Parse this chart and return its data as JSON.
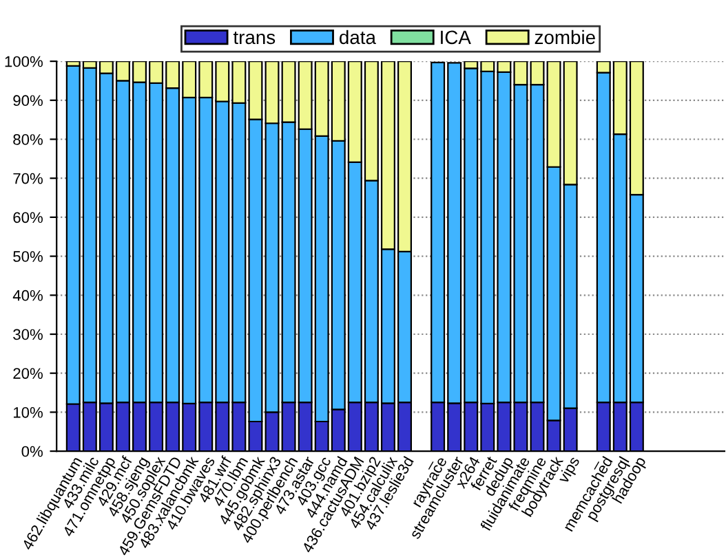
{
  "chart_data": {
    "type": "bar",
    "stacked": true,
    "categories": [
      "462.libquantum",
      "433.milc",
      "471.omnetpp",
      "429.mcf",
      "458.sjeng",
      "450.soplex",
      "459.GemsFDTD",
      "483.xalancbmk",
      "410.bwaves",
      "481.wrf",
      "470.lbm",
      "445.gobmk",
      "482.sphinx3",
      "400.perlbench",
      "473.astar",
      "403.gcc",
      "444.namd",
      "436.cactusADM",
      "401.bzip2",
      "454.calculix",
      "437.leslie3d",
      "_",
      "raytrace",
      "streamcluster",
      "x264",
      "ferret",
      "dedup",
      "fluidanimate",
      "freqmine",
      "bodytrack",
      "vips",
      "_",
      "memcached",
      "postgresql",
      "hadoop",
      null,
      null,
      null,
      null,
      null
    ],
    "series": [
      {
        "name": "trans",
        "color": "#3333cc",
        "values": [
          12.1,
          12.5,
          12.3,
          12.5,
          12.5,
          12.5,
          12.5,
          12.2,
          12.5,
          12.5,
          12.5,
          7.6,
          10.0,
          12.5,
          12.5,
          7.6,
          10.7,
          12.5,
          12.5,
          12.3,
          12.5,
          null,
          12.5,
          12.3,
          12.5,
          12.2,
          12.5,
          12.5,
          12.5,
          7.9,
          11.0,
          null,
          12.5,
          12.5,
          12.5,
          null,
          null,
          null,
          null,
          null
        ]
      },
      {
        "name": "data",
        "color": "#40b4ff",
        "values": [
          86.7,
          85.8,
          84.6,
          82.5,
          82.1,
          81.9,
          80.6,
          78.5,
          78.2,
          77.2,
          76.8,
          77.5,
          74.1,
          71.9,
          70.1,
          73.2,
          68.9,
          61.6,
          56.9,
          39.5,
          38.7,
          null,
          87.2,
          87.3,
          85.7,
          85.2,
          84.7,
          81.5,
          81.5,
          65.0,
          57.4,
          null,
          84.6,
          68.8,
          53.3,
          null,
          null,
          null,
          null,
          null
        ]
      },
      {
        "name": "ICA",
        "color": "#80e0a0",
        "values": [
          0,
          0,
          0,
          0,
          0,
          0,
          0,
          0,
          0,
          0,
          0,
          0,
          0,
          0,
          0,
          0,
          0,
          0,
          0,
          0,
          0,
          null,
          0,
          0,
          0,
          0,
          0,
          0,
          0,
          0,
          0,
          null,
          0,
          0,
          0,
          null,
          null,
          null,
          null,
          null
        ]
      },
      {
        "name": "zombie",
        "color": "#f0f890",
        "values": [
          1.2,
          1.7,
          3.1,
          5.0,
          5.4,
          5.6,
          6.9,
          9.3,
          9.3,
          10.3,
          10.7,
          14.9,
          15.9,
          15.6,
          17.4,
          19.2,
          20.4,
          25.9,
          30.6,
          48.2,
          48.8,
          null,
          null,
          null,
          1.8,
          2.6,
          2.8,
          6.0,
          6.0,
          27.1,
          31.6,
          null,
          2.9,
          18.7,
          34.2,
          null,
          null,
          null,
          null,
          null
        ]
      }
    ],
    "ylim": [
      0,
      100
    ],
    "yticks": [
      {
        "value": 0,
        "label": "0%"
      },
      {
        "value": 10,
        "label": "10%"
      },
      {
        "value": 20,
        "label": "20%"
      },
      {
        "value": 30,
        "label": "30%"
      },
      {
        "value": 40,
        "label": "40%"
      },
      {
        "value": 50,
        "label": "50%"
      },
      {
        "value": 60,
        "label": "60%"
      },
      {
        "value": 70,
        "label": "70%"
      },
      {
        "value": 80,
        "label": "80%"
      },
      {
        "value": 90,
        "label": "90%"
      },
      {
        "value": 100,
        "label": "100%"
      }
    ],
    "grid": "y",
    "legend": "top"
  }
}
